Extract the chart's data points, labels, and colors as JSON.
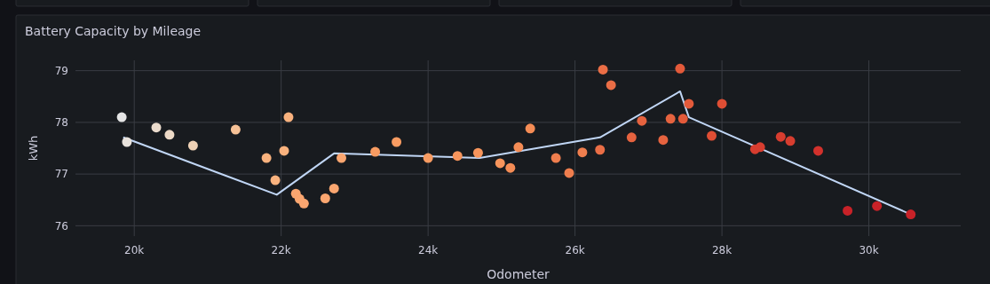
{
  "chart_data": {
    "type": "scatter",
    "title": "Battery Capacity by Mileage",
    "xlabel": "Odometer",
    "ylabel": "kWh",
    "xlim": [
      19200,
      31250
    ],
    "ylim": [
      75.8,
      79.2
    ],
    "xticks": [
      {
        "value": 20000,
        "label": "20k"
      },
      {
        "value": 22000,
        "label": "22k"
      },
      {
        "value": 24000,
        "label": "24k"
      },
      {
        "value": 26000,
        "label": "26k"
      },
      {
        "value": 28000,
        "label": "28k"
      },
      {
        "value": 30000,
        "label": "30k"
      }
    ],
    "yticks": [
      76,
      77,
      78,
      79
    ],
    "grid": true,
    "series": [
      {
        "marker": "circle",
        "x": [
          19830,
          19900,
          20300,
          20480,
          20800,
          21380,
          21800,
          21920,
          22040,
          22100,
          22200,
          22250,
          22310,
          22600,
          22720,
          22820,
          23280,
          23570,
          24000,
          24400,
          24680,
          24980,
          25120,
          25230,
          25390,
          25740,
          25920,
          26100,
          26340,
          26380,
          26490,
          26770,
          26910,
          27200,
          27300,
          27430,
          27470,
          27550,
          27860,
          28000,
          28450,
          28520,
          28800,
          28930,
          29310,
          29710,
          30110,
          30570
        ],
        "values": [
          78.1,
          77.62,
          77.9,
          77.76,
          77.55,
          77.86,
          77.31,
          76.88,
          77.45,
          78.1,
          76.62,
          76.52,
          76.43,
          76.53,
          76.72,
          77.31,
          77.43,
          77.62,
          77.31,
          77.35,
          77.41,
          77.21,
          77.12,
          77.52,
          77.88,
          77.31,
          77.02,
          77.42,
          77.47,
          79.02,
          78.72,
          77.71,
          78.03,
          77.66,
          78.07,
          79.04,
          78.07,
          78.36,
          77.74,
          78.36,
          77.48,
          77.52,
          77.72,
          77.64,
          77.45,
          76.29,
          76.38,
          76.22
        ],
        "colors": [
          "#e5e5e5",
          "#e8e2dc",
          "#ebdccd",
          "#ecd9c6",
          "#efd2b6",
          "#f6c196",
          "#f9b27e",
          "#f9b27e",
          "#f9b27e",
          "#f9b27e",
          "#faa670",
          "#faa670",
          "#faa670",
          "#faa670",
          "#faa670",
          "#faa670",
          "#f89c62",
          "#f89c62",
          "#f89c62",
          "#f7955c",
          "#f7955c",
          "#f7955c",
          "#f48c55",
          "#f48c55",
          "#f48c55",
          "#ef7e4e",
          "#ef7e4e",
          "#ef7e4e",
          "#ea6e46",
          "#ea6e46",
          "#ea6e46",
          "#e6633f",
          "#e6633f",
          "#e6633f",
          "#e6633f",
          "#e35a3a",
          "#e35a3a",
          "#e35a3a",
          "#df4e34",
          "#df4e34",
          "#d73d2f",
          "#d73d2f",
          "#d73d2f",
          "#d73d2f",
          "#d2312c",
          "#c82228",
          "#c82228",
          "#c82228"
        ]
      },
      {
        "type": "line",
        "color": "#c0d6f5",
        "x": [
          19850,
          21940,
          22720,
          24700,
          26340,
          27430,
          27550,
          30570
        ],
        "values": [
          77.71,
          76.6,
          77.4,
          77.31,
          77.71,
          78.6,
          78.1,
          76.22
        ]
      }
    ]
  }
}
